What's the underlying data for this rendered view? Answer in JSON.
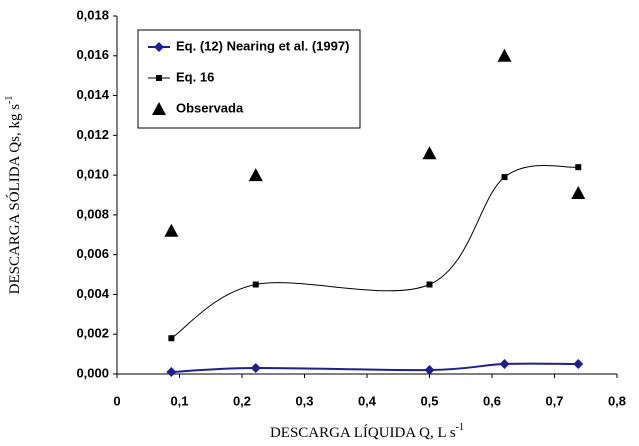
{
  "chart_data": {
    "type": "line",
    "x_label": "DESCARGA LÍQUIDA Q, L s",
    "x_label_sup": "-1",
    "y_label": "DESCARGA SÓLIDA Qs, kg s",
    "y_label_sup": "-1",
    "x": [
      0.087,
      0.222,
      0.5,
      0.62,
      0.738
    ],
    "series": [
      {
        "name": "Eq. (12) Nearing et al. (1997)",
        "color": "#1f1f8f",
        "marker": "diamond",
        "smooth": true,
        "values": [
          0.0001,
          0.0003,
          0.0002,
          0.0005,
          0.0005
        ]
      },
      {
        "name": "Eq. 16",
        "color": "#000000",
        "marker": "square",
        "smooth": true,
        "values": [
          0.0018,
          0.0045,
          0.0045,
          0.0099,
          0.0104
        ]
      },
      {
        "name": "Observada",
        "color": "#000000",
        "marker": "triangle",
        "smooth": false,
        "values": [
          0.0072,
          0.01,
          0.0111,
          0.016,
          0.0091
        ]
      }
    ],
    "xlim": [
      0,
      0.8
    ],
    "xticks": [
      {
        "value": 0,
        "label": "0"
      },
      {
        "value": 0.1,
        "label": "0,1"
      },
      {
        "value": 0.2,
        "label": "0,2"
      },
      {
        "value": 0.3,
        "label": "0,3"
      },
      {
        "value": 0.4,
        "label": "0,4"
      },
      {
        "value": 0.5,
        "label": "0,5"
      },
      {
        "value": 0.6,
        "label": "0,6"
      },
      {
        "value": 0.7,
        "label": "0,7"
      },
      {
        "value": 0.8,
        "label": "0,8"
      }
    ],
    "ylim": [
      0,
      0.018
    ],
    "yticks": [
      {
        "value": 0,
        "label": "0,000"
      },
      {
        "value": 0.002,
        "label": "0,002"
      },
      {
        "value": 0.004,
        "label": "0,004"
      },
      {
        "value": 0.006,
        "label": "0,006"
      },
      {
        "value": 0.008,
        "label": "0,008"
      },
      {
        "value": 0.01,
        "label": "0,010"
      },
      {
        "value": 0.012,
        "label": "0,012"
      },
      {
        "value": 0.014,
        "label": "0,014"
      },
      {
        "value": 0.016,
        "label": "0,016"
      },
      {
        "value": 0.018,
        "label": "0,018"
      }
    ],
    "grid": false,
    "legend": "top-left"
  }
}
